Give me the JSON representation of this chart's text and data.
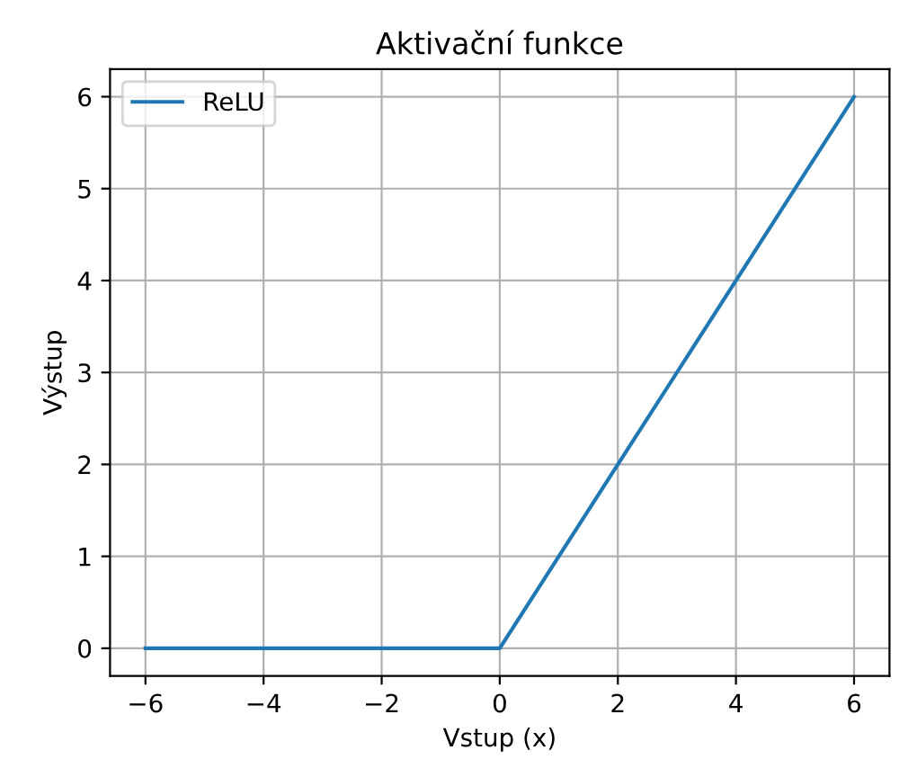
{
  "chart_data": {
    "type": "line",
    "title": "Aktivační funkce",
    "xlabel": "Vstup (x)",
    "ylabel": "Výstup",
    "series": [
      {
        "name": "ReLU",
        "color": "#1f77b4",
        "x": [
          -6,
          -0.1,
          0,
          0.1,
          6
        ],
        "values": [
          0,
          0,
          0,
          0.1,
          6
        ]
      }
    ],
    "xlim": [
      -6.6,
      6.6
    ],
    "ylim": [
      -0.3,
      6.3
    ],
    "xticks": [
      {
        "value": -6,
        "label": "−6"
      },
      {
        "value": -4,
        "label": "−4"
      },
      {
        "value": -2,
        "label": "−2"
      },
      0,
      2,
      4,
      6
    ],
    "yticks": [
      0,
      1,
      2,
      3,
      4,
      5,
      6
    ],
    "grid": true,
    "legend": "top left",
    "marker": "none",
    "line_style": "solid"
  }
}
